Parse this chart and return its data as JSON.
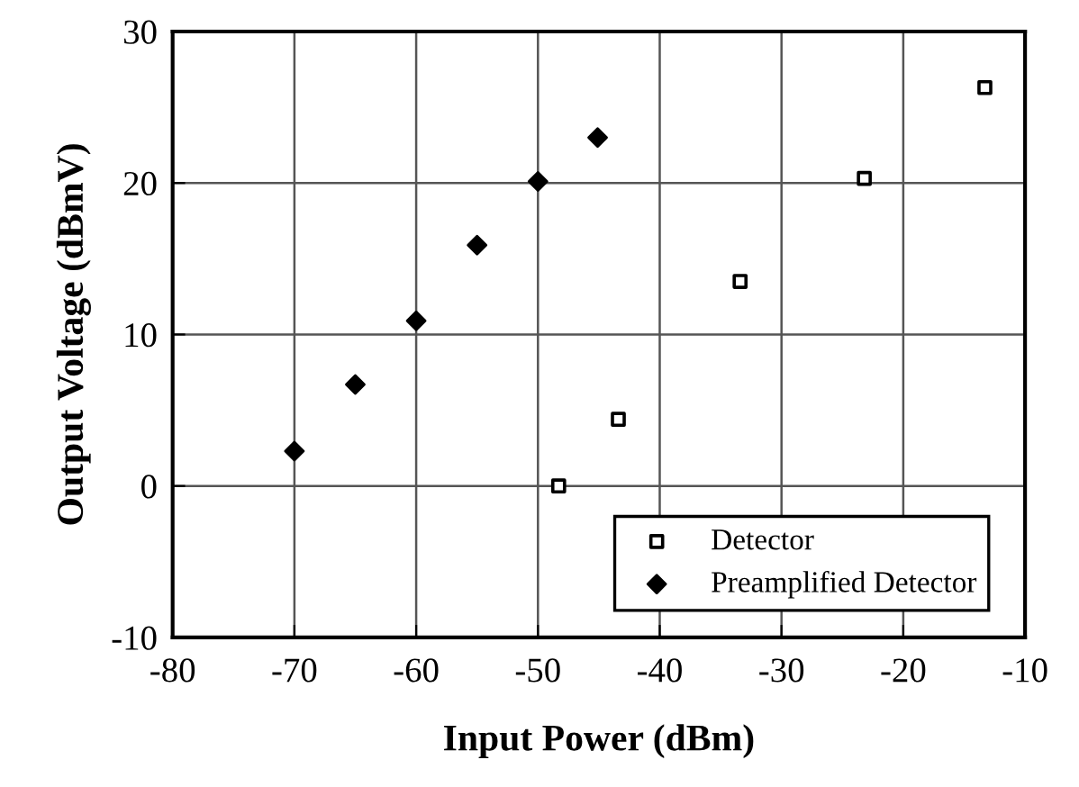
{
  "chart_data": {
    "type": "scatter",
    "xlabel": "Input Power (dBm)",
    "ylabel": "Output Voltage (dBmV)",
    "series": [
      {
        "name": "Detector",
        "color": "#000000",
        "marker": "square",
        "x": [
          -48.3,
          -43.4,
          -33.4,
          -23.2,
          -13.3
        ],
        "values": [
          0,
          4.4,
          13.5,
          20.3,
          26.3
        ]
      },
      {
        "name": "Preamplified Detector",
        "color": "#000000",
        "marker": "diamond",
        "x": [
          -70,
          -65,
          -60,
          -55,
          -50,
          -45.1
        ],
        "values": [
          2.3,
          6.7,
          10.9,
          15.9,
          20.1,
          23.0
        ]
      }
    ],
    "xlim": [
      -80,
      -10
    ],
    "xticks": [
      -80,
      -70,
      -60,
      -50,
      -40,
      -30,
      -20,
      -10
    ],
    "ylim": [
      -10,
      30
    ],
    "yticks": [
      -10,
      0,
      10,
      20,
      30
    ],
    "grid": true,
    "legend": "bottom right"
  }
}
